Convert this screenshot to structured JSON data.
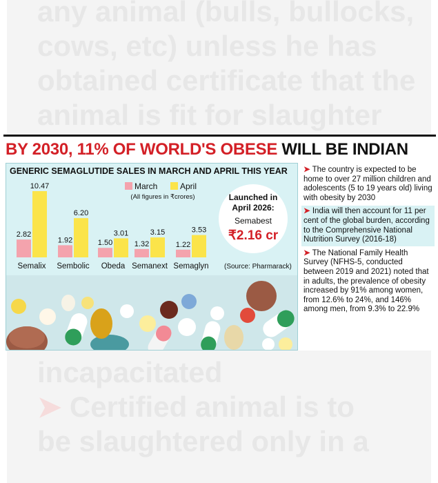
{
  "background": {
    "top_text": "any animal (bulls, bullocks,\ncows, etc) unless he has\nobtained certificate that the\nanimal is fit for slaughter",
    "bottom_text": "incapacitated",
    "bottom_arrow": "➤",
    "bottom_text_2": "Certified animal is to\nbe slaughtered only in a"
  },
  "headline": {
    "red_part": "BY 2030, 11% OF WORLD'S OBESE",
    "black_part": "WILL BE INDIAN"
  },
  "chart_data": {
    "type": "bar",
    "title": "GENERIC SEMAGLUTIDE SALES IN MARCH AND APRIL THIS YEAR",
    "subtitle": "(All figures in ₹crores)",
    "categories": [
      "Semalix",
      "Sembolic",
      "Obeda",
      "Semanext",
      "Semaglyn"
    ],
    "series": [
      {
        "name": "March",
        "values": [
          2.82,
          1.92,
          1.5,
          1.32,
          1.22
        ],
        "color": "#f4a3ad"
      },
      {
        "name": "April",
        "values": [
          10.47,
          6.2,
          3.01,
          3.15,
          3.53
        ],
        "color": "#fbe44a"
      }
    ],
    "value_labels": [
      [
        "2.82",
        "1.92",
        "1.50",
        "1.32",
        "1.22"
      ],
      [
        "10.47",
        "6.20",
        "3.01",
        "3.15",
        "3.53"
      ]
    ],
    "ylim": [
      0,
      10.47
    ],
    "grid": false,
    "legend": "top-center",
    "source": "(Source: Pharmarack)"
  },
  "launch": {
    "heading": "Launched in\nApril 2026:",
    "drug": "Semabest",
    "price": "₹2.16 cr"
  },
  "bullets": [
    {
      "arrow": "➤",
      "text": "The country is expected to be home to over 27 million children and adolescents (5 to 19 years old) living with obesity by 2030"
    },
    {
      "arrow": "➤",
      "text": "India will then account for 11 per cent of the global burden, according to the Comprehensive National Nutrition Survey (2016-18)"
    },
    {
      "arrow": "➤",
      "text": "The National Family Health Survey (NFHS-5, conducted between 2019 and 2021) noted that in adults, the prevalence of obesity increased by 91% among women, from 12.6% to 24%, and 146% among men, from 9.3% to 22.9%"
    }
  ],
  "colors": {
    "accent_red": "#d32027",
    "panel_cyan": "#d9f2f4",
    "march_pink": "#f4a3ad",
    "april_yellow": "#fbe44a"
  }
}
